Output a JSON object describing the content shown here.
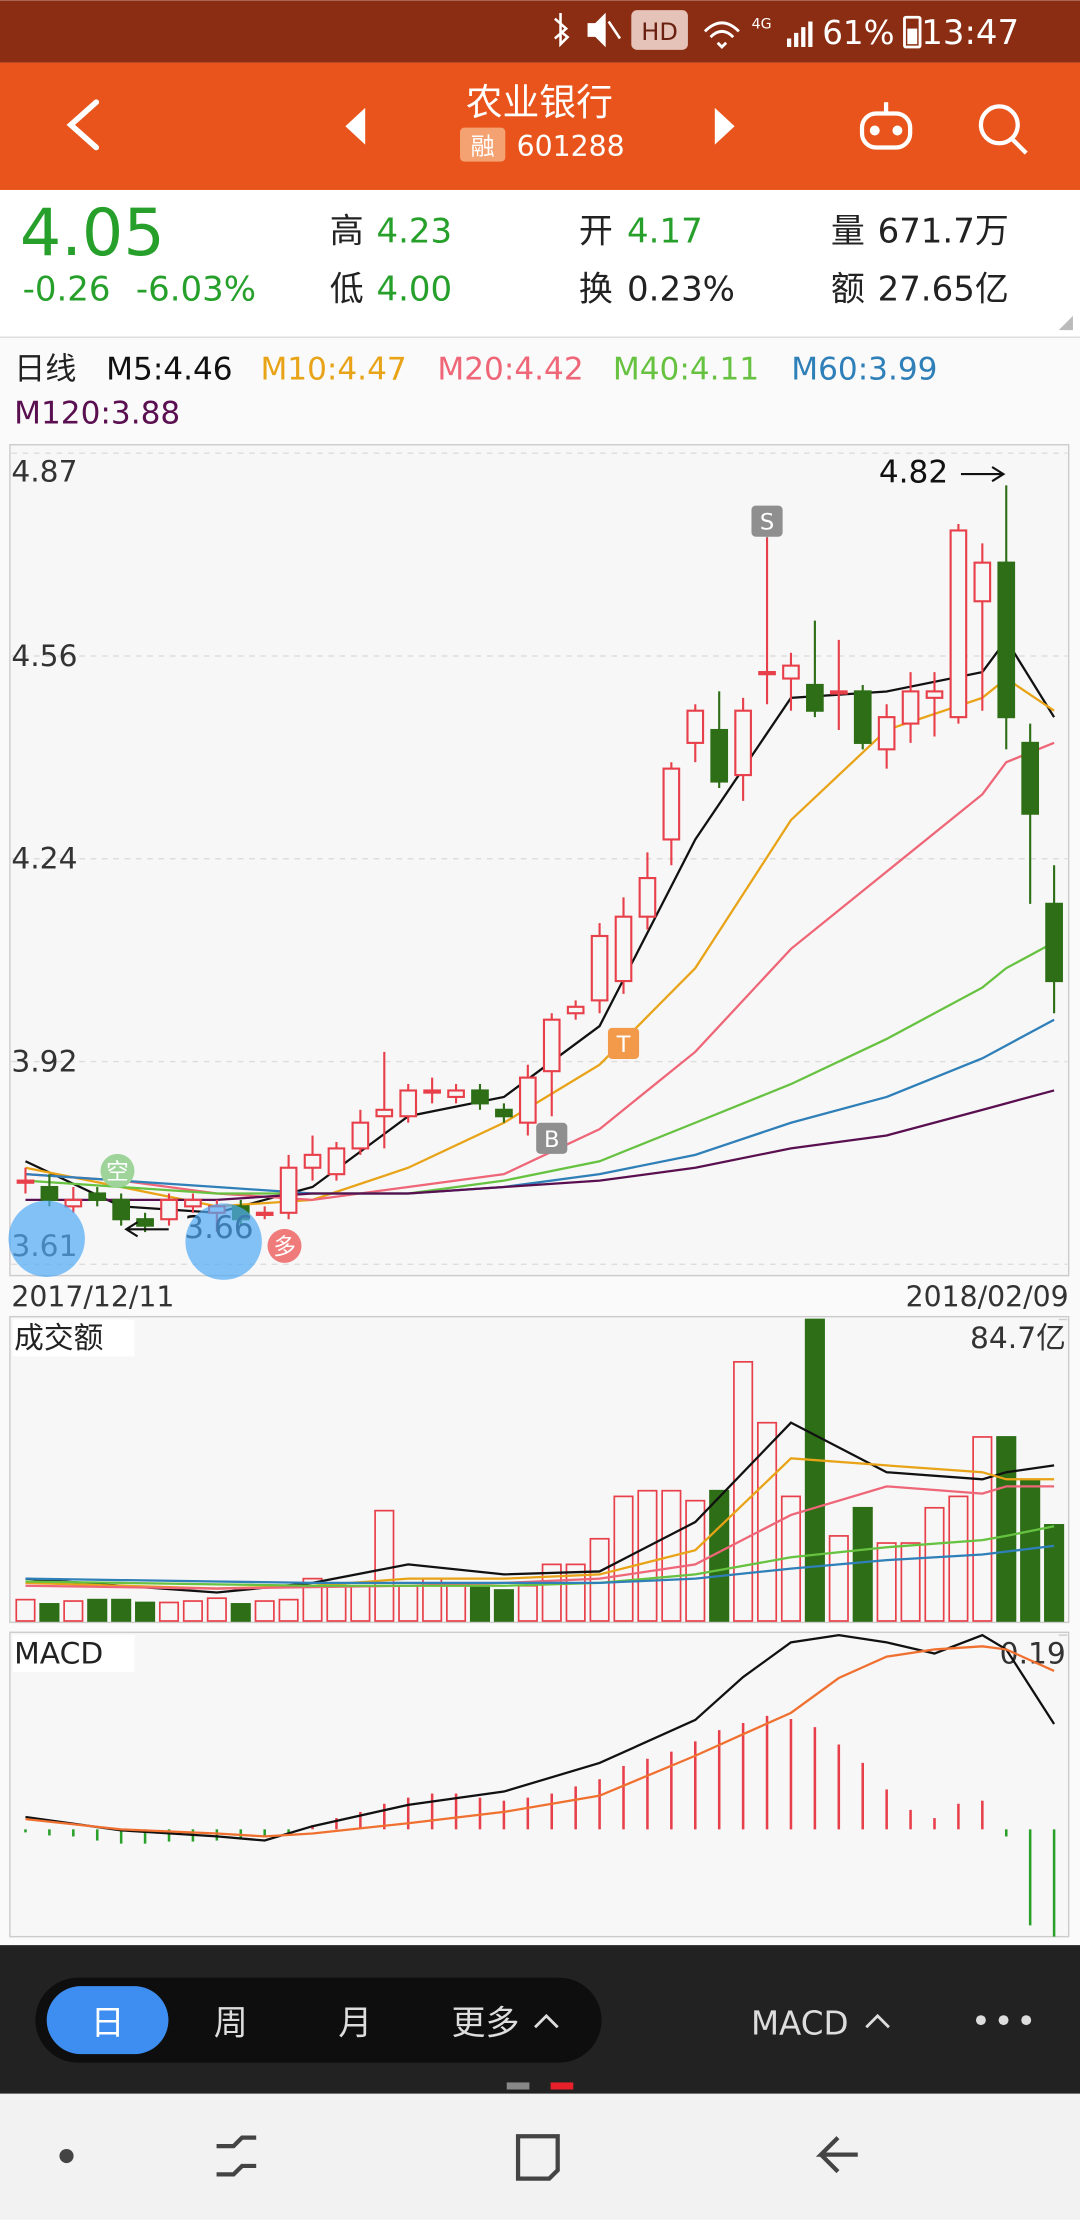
{
  "status_bar": {
    "hd": "HD",
    "network": "4G",
    "battery": "61%",
    "time": "13:47"
  },
  "header": {
    "title": "农业银行",
    "badge": "融",
    "code": "601288"
  },
  "quote": {
    "price": "4.05",
    "change": "-0.26",
    "change_pct": "-6.03%",
    "high_label": "高",
    "high": "4.23",
    "low_label": "低",
    "low": "4.00",
    "open_label": "开",
    "open": "4.17",
    "turnover_label": "换",
    "turnover": "0.23%",
    "volume_label": "量",
    "volume": "671.7万",
    "amount_label": "额",
    "amount": "27.65亿"
  },
  "chart_data": [
    {
      "type": "candlestick",
      "period_label": "日线",
      "date_labels": [
        "2017/12/11",
        "2018/02/09"
      ],
      "ylim": [
        3.61,
        4.87
      ],
      "yticks": [
        4.87,
        {
          "value": 4.555,
          "label": "4.56"
        },
        4.24,
        {
          "value": 3.925,
          "label": "3.92"
        },
        3.61
      ],
      "up_color": "#e8404a",
      "down_color": "#2d6e17",
      "open": [
        3.74,
        3.73,
        3.7,
        3.72,
        3.71,
        3.68,
        3.68,
        3.7,
        3.69,
        3.7,
        3.69,
        3.69,
        3.76,
        3.75,
        3.79,
        3.84,
        3.84,
        3.88,
        3.87,
        3.88,
        3.85,
        3.83,
        3.91,
        4.0,
        4.02,
        4.05,
        4.15,
        4.27,
        4.42,
        4.44,
        4.37,
        4.53,
        4.52,
        4.51,
        4.5,
        4.5,
        4.41,
        4.45,
        4.49,
        4.46,
        4.64,
        4.7,
        4.42,
        4.17
      ],
      "close": [
        3.74,
        3.71,
        3.71,
        3.71,
        3.68,
        3.67,
        3.71,
        3.71,
        3.7,
        3.68,
        3.69,
        3.76,
        3.78,
        3.79,
        3.83,
        3.85,
        3.88,
        3.88,
        3.88,
        3.86,
        3.84,
        3.9,
        3.99,
        4.01,
        4.12,
        4.15,
        4.21,
        4.38,
        4.47,
        4.36,
        4.47,
        4.53,
        4.54,
        4.47,
        4.5,
        4.42,
        4.46,
        4.5,
        4.5,
        4.75,
        4.7,
        4.46,
        4.31,
        4.05
      ],
      "high": [
        3.76,
        3.75,
        3.73,
        3.73,
        3.72,
        3.69,
        3.72,
        3.72,
        3.71,
        3.71,
        3.7,
        3.78,
        3.81,
        3.8,
        3.85,
        3.94,
        3.89,
        3.9,
        3.89,
        3.89,
        3.86,
        3.92,
        4.0,
        4.02,
        4.14,
        4.18,
        4.25,
        4.39,
        4.48,
        4.5,
        4.49,
        4.74,
        4.56,
        4.61,
        4.58,
        4.51,
        4.48,
        4.53,
        4.53,
        4.76,
        4.73,
        4.82,
        4.45,
        4.23
      ],
      "low": [
        3.72,
        3.7,
        3.69,
        3.7,
        3.67,
        3.66,
        3.67,
        3.69,
        3.66,
        3.67,
        3.68,
        3.68,
        3.74,
        3.74,
        3.78,
        3.79,
        3.83,
        3.86,
        3.86,
        3.85,
        3.83,
        3.81,
        3.84,
        3.99,
        4.0,
        4.03,
        4.13,
        4.23,
        4.39,
        4.35,
        4.33,
        4.48,
        4.47,
        4.46,
        4.44,
        4.41,
        4.38,
        4.42,
        4.43,
        4.45,
        4.47,
        4.41,
        4.17,
        4.0
      ],
      "ma_x": [
        0,
        4,
        8,
        12,
        16,
        20,
        24,
        28,
        32,
        36,
        40,
        41,
        43
      ],
      "series": [
        {
          "name": "M5:4.46",
          "color": "#111111",
          "values": [
            3.77,
            3.7,
            3.69,
            3.73,
            3.84,
            3.87,
            3.98,
            4.27,
            4.49,
            4.5,
            4.53,
            4.58,
            4.46
          ]
        },
        {
          "name": "M10:4.47",
          "color": "#e8a317",
          "values": [
            3.76,
            3.73,
            3.7,
            3.71,
            3.76,
            3.83,
            3.92,
            4.07,
            4.3,
            4.44,
            4.49,
            4.52,
            4.47
          ]
        },
        {
          "name": "M20:4.42",
          "color": "#ee6677",
          "values": [
            3.75,
            3.74,
            3.72,
            3.71,
            3.73,
            3.75,
            3.82,
            3.94,
            4.1,
            4.22,
            4.34,
            4.39,
            4.42
          ]
        },
        {
          "name": "M40:4.11",
          "color": "#66c240",
          "values": [
            3.74,
            3.73,
            3.72,
            3.72,
            3.72,
            3.74,
            3.77,
            3.83,
            3.89,
            3.96,
            4.04,
            4.07,
            4.11
          ]
        },
        {
          "name": "M60:3.99",
          "color": "#2f7fb8",
          "values": [
            3.75,
            3.74,
            3.73,
            3.72,
            3.72,
            3.73,
            3.75,
            3.78,
            3.83,
            3.87,
            3.93,
            3.95,
            3.99
          ]
        },
        {
          "name": "M120:3.88",
          "color": "#5a1050",
          "values": [
            3.71,
            3.71,
            3.71,
            3.72,
            3.72,
            3.73,
            3.74,
            3.76,
            3.79,
            3.81,
            3.85,
            3.86,
            3.88
          ]
        }
      ],
      "annotations": {
        "high_label": "4.82",
        "low_label": "3.66",
        "sell": "S",
        "buy": "B",
        "t": "T",
        "long": "多",
        "short": "空"
      }
    },
    {
      "type": "bar",
      "title": "成交额",
      "ylim": [
        0,
        84.7
      ],
      "yticks": [
        {
          "value": 84.7,
          "label": "84.7亿"
        }
      ],
      "values": [
        6.0,
        4.8,
        5.6,
        6.0,
        6.0,
        5.2,
        5.2,
        5.6,
        6.4,
        4.8,
        5.6,
        6.0,
        11.9,
        9.9,
        9.9,
        31.0,
        9.9,
        11.9,
        9.9,
        9.9,
        8.7,
        9.9,
        15.9,
        15.9,
        23.1,
        35.0,
        36.6,
        36.6,
        33.8,
        36.6,
        72.8,
        55.7,
        35.0,
        84.7,
        23.9,
        31.8,
        21.9,
        21.9,
        31.8,
        35.0,
        51.7,
        51.7,
        39.8,
        27.0
      ],
      "line_x": [
        0,
        4,
        8,
        12,
        16,
        20,
        24,
        28,
        32,
        36,
        40,
        41,
        43
      ],
      "series": [
        {
          "color": "#111111",
          "values": [
            11.9,
            9.9,
            8.0,
            10.7,
            15.9,
            13.1,
            13.9,
            27.8,
            55.7,
            41.8,
            39.8,
            41.8,
            43.7
          ]
        },
        {
          "color": "#e8a317",
          "values": [
            10.7,
            9.9,
            9.1,
            9.9,
            11.9,
            11.9,
            13.1,
            19.9,
            45.7,
            43.7,
            41.8,
            39.8,
            39.8
          ]
        },
        {
          "color": "#ee6677",
          "values": [
            9.9,
            9.5,
            9.1,
            9.5,
            9.9,
            10.7,
            11.9,
            15.9,
            29.8,
            37.8,
            35.8,
            37.8,
            37.8
          ]
        },
        {
          "color": "#66c240",
          "values": [
            11.1,
            10.7,
            10.3,
            9.9,
            9.9,
            9.9,
            10.7,
            13.1,
            17.9,
            20.7,
            22.7,
            23.9,
            26.6
          ]
        },
        {
          "color": "#2f7fb8",
          "values": [
            11.9,
            11.5,
            11.1,
            10.7,
            10.7,
            10.7,
            10.7,
            11.9,
            14.7,
            17.1,
            18.7,
            19.5,
            21.1
          ]
        }
      ]
    },
    {
      "type": "macd",
      "title": "MACD",
      "ylim": [
        -0.105,
        0.19
      ],
      "yticks": [
        0.19
      ],
      "values": [
        -0.003,
        -0.006,
        -0.007,
        -0.011,
        -0.014,
        -0.014,
        -0.012,
        -0.012,
        -0.011,
        -0.01,
        -0.008,
        -0.004,
        0.004,
        0.011,
        0.017,
        0.025,
        0.031,
        0.035,
        0.035,
        0.031,
        0.028,
        0.031,
        0.035,
        0.042,
        0.049,
        0.062,
        0.069,
        0.076,
        0.086,
        0.097,
        0.104,
        0.111,
        0.108,
        0.1,
        0.083,
        0.065,
        0.039,
        0.019,
        0.011,
        0.025,
        0.028,
        -0.007,
        -0.094,
        -0.105
      ],
      "line_x": [
        0,
        4,
        8,
        10,
        12,
        16,
        20,
        24,
        28,
        30,
        32,
        34,
        36,
        38,
        40,
        41,
        43
      ],
      "series": [
        {
          "color": "#111111",
          "values": [
            0.012,
            -0.001,
            -0.007,
            -0.011,
            0.003,
            0.024,
            0.037,
            0.065,
            0.107,
            0.149,
            0.183,
            0.19,
            0.183,
            0.172,
            0.19,
            0.176,
            0.103
          ]
        },
        {
          "color": "#f07030",
          "values": [
            0.01,
            0,
            -0.004,
            -0.007,
            -0.004,
            0.006,
            0.017,
            0.033,
            0.072,
            0.093,
            0.114,
            0.148,
            0.169,
            0.176,
            0.179,
            0.176,
            0.155
          ]
        }
      ]
    }
  ],
  "toolbar": {
    "tabs": [
      "日",
      "周",
      "月",
      "更多"
    ],
    "indicator": "MACD"
  }
}
